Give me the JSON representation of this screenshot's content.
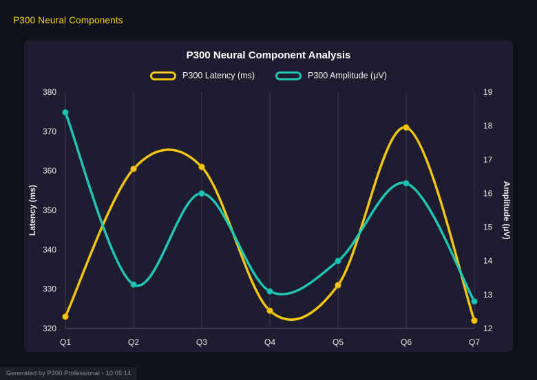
{
  "page": {
    "header": "P300 Neural Components",
    "footer": "Generated by P300 Professional - 10:05:14"
  },
  "chart_data": {
    "type": "line",
    "title": "P300 Neural Component Analysis",
    "categories": [
      "Q1",
      "Q2",
      "Q3",
      "Q4",
      "Q5",
      "Q6",
      "Q7"
    ],
    "series": [
      {
        "name": "P300 Latency (ms)",
        "axis": "left",
        "color": "#f3c50f",
        "point_stroke": "#d9a400",
        "values": [
          323,
          360.5,
          361,
          324.5,
          331,
          371,
          322
        ]
      },
      {
        "name": "P300 Amplitude (μV)",
        "axis": "right",
        "color": "#20c5b5",
        "point_stroke": "#11988c",
        "values": [
          18.4,
          13.3,
          16.0,
          13.1,
          14.0,
          16.3,
          12.8
        ]
      }
    ],
    "left_axis": {
      "label": "Latency (ms)",
      "min": 320,
      "max": 380,
      "ticks": [
        320,
        330,
        340,
        350,
        360,
        370,
        380
      ]
    },
    "right_axis": {
      "label": "Amplitude (μV)",
      "min": 12,
      "max": 19,
      "ticks": [
        12,
        13,
        14,
        15,
        16,
        17,
        18,
        19
      ]
    },
    "grid": "vertical",
    "legend_position": "top",
    "line_style": "smooth",
    "colors": {
      "panel_background": "#1d1d2f",
      "page_background": "#0f1119",
      "header_text": "#ffd60a",
      "gridline": "rgba(255,255,255,0.13)"
    }
  }
}
